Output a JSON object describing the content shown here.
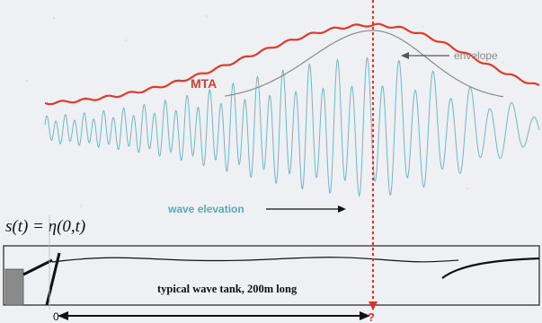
{
  "labels": {
    "mta": "MTA",
    "envelope": "envelope",
    "wave_elevation": "wave elevation",
    "formula": "s(t) = η(0,t)",
    "tank": "typical wave tank, 200m long",
    "origin": "0",
    "unknown": "?"
  },
  "colors": {
    "background": "#eef0f4",
    "mta_curve": "#e03a2a",
    "envelope_curve": "#8a8a8a",
    "wave": "#6fb7c7",
    "wave_label": "#5aa9b8",
    "focus_line": "#d9342b",
    "tank_line": "#1a1a1a",
    "wavemaker": "#8a8a8a"
  }
}
